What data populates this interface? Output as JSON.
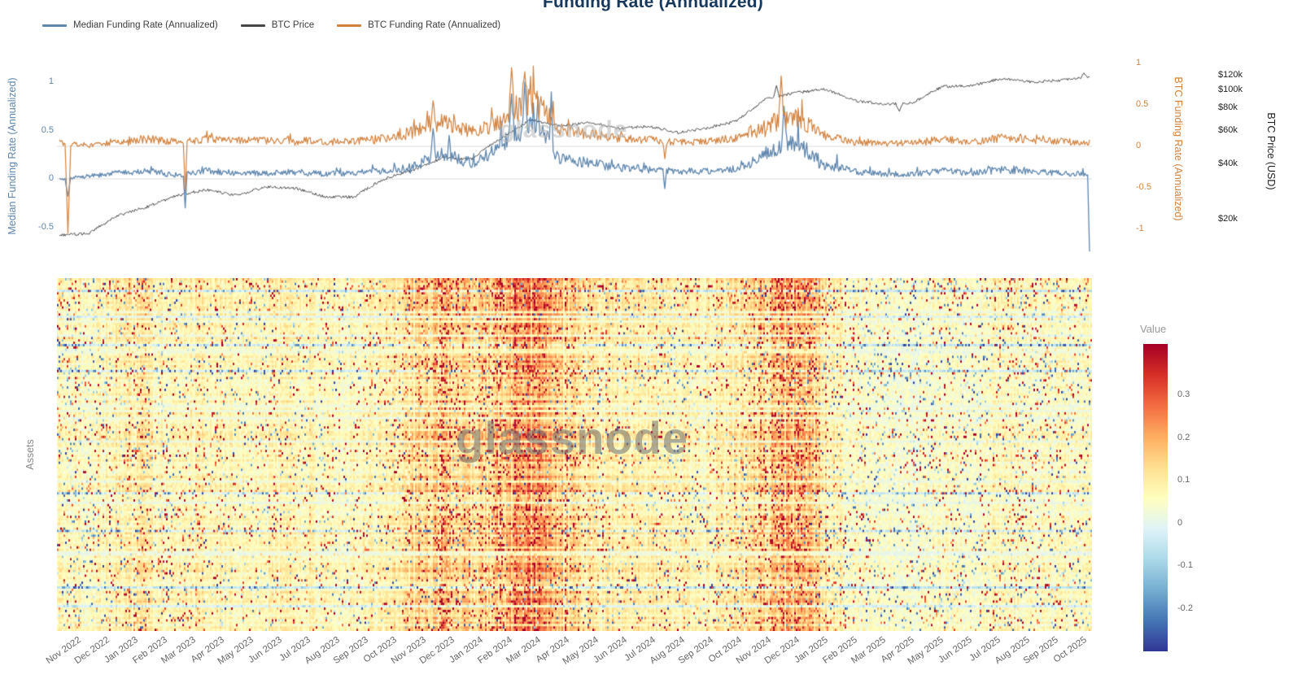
{
  "title": "Funding Rate (Annualized)",
  "watermark": "glassnode",
  "legend": [
    {
      "label": "Median Funding Rate (Annualized)",
      "color": "#5f86ad"
    },
    {
      "label": "BTC Price",
      "color": "#474747"
    },
    {
      "label": "BTC Funding Rate (Annualized)",
      "color": "#d2823f"
    }
  ],
  "top_chart": {
    "left_axis": {
      "title": "Median Funding Rate (Annualized)",
      "color": "#5f86ad",
      "ticks": [
        {
          "label": "1",
          "v": 1
        },
        {
          "label": "0.5",
          "v": 0.5
        },
        {
          "label": "0",
          "v": 0
        },
        {
          "label": "-0.5",
          "v": -0.5
        }
      ]
    },
    "right_funding_axis": {
      "title": "BTC Funding Rate (Annualized)",
      "color": "#d2823f",
      "ticks": [
        {
          "label": "1",
          "v": 1
        },
        {
          "label": "0.5",
          "v": 0.5
        },
        {
          "label": "0",
          "v": 0
        },
        {
          "label": "-0.5",
          "v": -0.5
        },
        {
          "label": "-1",
          "v": -1
        }
      ]
    },
    "right_price_axis": {
      "title": "BTC Price (USD)",
      "color": "#222222",
      "ticks": [
        {
          "label": "$120k",
          "v": 120
        },
        {
          "label": "$100k",
          "v": 100
        },
        {
          "label": "$80k",
          "v": 80
        },
        {
          "label": "$60k",
          "v": 60
        },
        {
          "label": "$40k",
          "v": 40
        },
        {
          "label": "$20k",
          "v": 20
        }
      ]
    }
  },
  "heatmap": {
    "ylabel": "Assets",
    "x_labels": [
      "Nov 2022",
      "Dec 2022",
      "Jan 2023",
      "Feb 2023",
      "Mar 2023",
      "Apr 2023",
      "May 2023",
      "Jun 2023",
      "Jul 2023",
      "Aug 2023",
      "Sep 2023",
      "Oct 2023",
      "Nov 2023",
      "Dec 2023",
      "Jan 2024",
      "Feb 2024",
      "Mar 2024",
      "Apr 2024",
      "May 2024",
      "Jun 2024",
      "Jul 2024",
      "Aug 2024",
      "Sep 2024",
      "Oct 2024",
      "Nov 2024",
      "Dec 2024",
      "Jan 2025",
      "Feb 2025",
      "Mar 2025",
      "Apr 2025",
      "May 2025",
      "Jun 2025",
      "Jul 2025",
      "Aug 2025",
      "Sep 2025",
      "Oct 2025"
    ],
    "colorbar": {
      "title": "Value",
      "domain": [
        0.42,
        -0.3
      ],
      "colors": [
        "#a50026",
        "#d73027",
        "#f46d43",
        "#fdae61",
        "#fee090",
        "#ffffbf",
        "#e0f3f8",
        "#abd9e9",
        "#74add1",
        "#4575b4",
        "#313695"
      ],
      "ticks": [
        {
          "label": "0.3",
          "v": 0.3
        },
        {
          "label": "0.2",
          "v": 0.2
        },
        {
          "label": "0.1",
          "v": 0.1
        },
        {
          "label": "0",
          "v": 0
        },
        {
          "label": "-0.1",
          "v": -0.1
        },
        {
          "label": "-0.2",
          "v": -0.2
        }
      ]
    }
  },
  "chart_data": {
    "type": [
      "line",
      "heatmap"
    ],
    "x_monthly": [
      "Nov 2022",
      "Dec 2022",
      "Jan 2023",
      "Feb 2023",
      "Mar 2023",
      "Apr 2023",
      "May 2023",
      "Jun 2023",
      "Jul 2023",
      "Aug 2023",
      "Sep 2023",
      "Oct 2023",
      "Nov 2023",
      "Dec 2023",
      "Jan 2024",
      "Feb 2024",
      "Mar 2024",
      "Apr 2024",
      "May 2024",
      "Jun 2024",
      "Jul 2024",
      "Aug 2024",
      "Sep 2024",
      "Oct 2024",
      "Nov 2024",
      "Dec 2024",
      "Jan 2025",
      "Feb 2025",
      "Mar 2025",
      "Apr 2025",
      "May 2025",
      "Jun 2025",
      "Jul 2025",
      "Aug 2025",
      "Sep 2025",
      "Oct 2025"
    ],
    "line_chart": {
      "title": "Funding Rate (Annualized)",
      "left_axis_range": [
        -0.8,
        1.25
      ],
      "right_funding_axis_range": [
        -1.1,
        1.1
      ],
      "price_axis_kusd_log_range": [
        14,
        135
      ],
      "series": [
        {
          "name": "Median Funding Rate (Annualized)",
          "axis": "left-funding",
          "color": "#5f86ad",
          "monthly_values": [
            0.0,
            0.03,
            0.06,
            0.08,
            0.04,
            0.08,
            0.06,
            0.06,
            0.07,
            0.05,
            0.06,
            0.08,
            0.12,
            0.28,
            0.16,
            0.32,
            0.62,
            0.22,
            0.16,
            0.12,
            0.1,
            0.08,
            0.08,
            0.1,
            0.25,
            0.38,
            0.14,
            0.08,
            0.05,
            0.05,
            0.08,
            0.06,
            0.1,
            0.08,
            0.06,
            0.05
          ]
        },
        {
          "name": "BTC Funding Rate (Annualized)",
          "axis": "right-funding",
          "color": "#d2823f",
          "monthly_values": [
            0.05,
            0.01,
            0.06,
            0.09,
            0.05,
            0.09,
            0.07,
            0.07,
            0.08,
            0.05,
            0.06,
            0.1,
            0.17,
            0.3,
            0.17,
            0.28,
            0.58,
            0.2,
            0.14,
            0.1,
            0.08,
            0.05,
            0.06,
            0.1,
            0.26,
            0.36,
            0.12,
            0.05,
            0.03,
            0.05,
            0.08,
            0.05,
            0.1,
            0.08,
            0.06,
            0.05
          ]
        },
        {
          "name": "BTC Price",
          "axis": "right-price-log",
          "unit": "k USD",
          "color": "#474747",
          "monthly_values": [
            16.5,
            16.8,
            21.0,
            23.5,
            27.0,
            29.0,
            27.0,
            30.0,
            29.5,
            26.5,
            26.5,
            33.0,
            37.0,
            43.0,
            42.5,
            55.0,
            69.0,
            64.0,
            67.0,
            62.0,
            64.0,
            59.0,
            62.5,
            68.0,
            90.0,
            97.0,
            101.0,
            88.0,
            84.0,
            86.0,
            105.0,
            106.0,
            116.0,
            111.0,
            113.0,
            119.0
          ]
        }
      ],
      "events": [
        {
          "day": 9,
          "series": "btc_funding",
          "value": -1.05,
          "width": 2
        },
        {
          "day": 9,
          "series": "median_funding",
          "value": -0.18,
          "width": 2
        },
        {
          "day": 133,
          "series": "btc_funding",
          "value": -0.55,
          "width": 1
        },
        {
          "day": 133,
          "series": "median_funding",
          "value": -0.3,
          "width": 1
        },
        {
          "day": 395,
          "series": "median_funding",
          "value": 0.52,
          "width": 2
        },
        {
          "day": 395,
          "series": "btc_funding",
          "value": 0.55,
          "width": 2
        },
        {
          "day": 412,
          "series": "median_funding",
          "value": 0.45,
          "width": 1
        },
        {
          "day": 478,
          "series": "btc_funding",
          "value": 0.95,
          "width": 2
        },
        {
          "day": 478,
          "series": "median_funding",
          "value": 0.88,
          "width": 2
        },
        {
          "day": 492,
          "series": "median_funding",
          "value": 1.0,
          "width": 2
        },
        {
          "day": 492,
          "series": "btc_funding",
          "value": 0.9,
          "width": 2
        },
        {
          "day": 506,
          "series": "median_funding",
          "value": 0.85,
          "width": 1
        },
        {
          "day": 520,
          "series": "median_funding",
          "value": 0.9,
          "width": 1
        },
        {
          "day": 640,
          "series": "btc_funding",
          "value": -0.15,
          "width": 1
        },
        {
          "day": 640,
          "series": "median_funding",
          "value": -0.1,
          "width": 1
        },
        {
          "day": 758,
          "series": "btc_price",
          "value": 106,
          "width": 2
        },
        {
          "day": 763,
          "series": "btc_funding",
          "value": 0.85,
          "width": 2
        },
        {
          "day": 766,
          "series": "median_funding",
          "value": 0.75,
          "width": 2
        },
        {
          "day": 888,
          "series": "btc_price",
          "value": 77,
          "width": 3
        },
        {
          "day": 1083,
          "series": "btc_price",
          "value": 124,
          "width": 2
        },
        {
          "day": 1089,
          "series": "median_funding",
          "value": -0.75,
          "width": 1
        }
      ]
    },
    "heatmap_chart": {
      "type": "heatmap",
      "ylabel": "Assets",
      "rows_estimate": 150,
      "value_scale": {
        "max_color": 0.42,
        "min_color": -0.3
      },
      "month_mean": [
        0.06,
        0.05,
        0.07,
        0.08,
        0.06,
        0.07,
        0.06,
        0.06,
        0.07,
        0.06,
        0.06,
        0.07,
        0.1,
        0.13,
        0.1,
        0.13,
        0.18,
        0.11,
        0.09,
        0.08,
        0.07,
        0.07,
        0.07,
        0.08,
        0.12,
        0.15,
        0.08,
        0.05,
        0.04,
        0.04,
        0.05,
        0.04,
        0.06,
        0.05,
        0.05,
        0.05
      ],
      "month_red_intensity": [
        0.16,
        0.1,
        0.12,
        0.16,
        0.14,
        0.12,
        0.1,
        0.1,
        0.12,
        0.1,
        0.1,
        0.12,
        0.25,
        0.45,
        0.25,
        0.42,
        0.62,
        0.3,
        0.18,
        0.14,
        0.12,
        0.12,
        0.12,
        0.15,
        0.35,
        0.55,
        0.18,
        0.1,
        0.08,
        0.08,
        0.1,
        0.08,
        0.16,
        0.13,
        0.1,
        0.1
      ],
      "month_blue_fraction": [
        0.22,
        0.18,
        0.14,
        0.12,
        0.16,
        0.12,
        0.12,
        0.12,
        0.1,
        0.12,
        0.12,
        0.1,
        0.08,
        0.06,
        0.1,
        0.06,
        0.05,
        0.08,
        0.1,
        0.1,
        0.12,
        0.14,
        0.1,
        0.1,
        0.06,
        0.05,
        0.12,
        0.18,
        0.22,
        0.2,
        0.18,
        0.2,
        0.14,
        0.18,
        0.18,
        0.18
      ]
    }
  }
}
